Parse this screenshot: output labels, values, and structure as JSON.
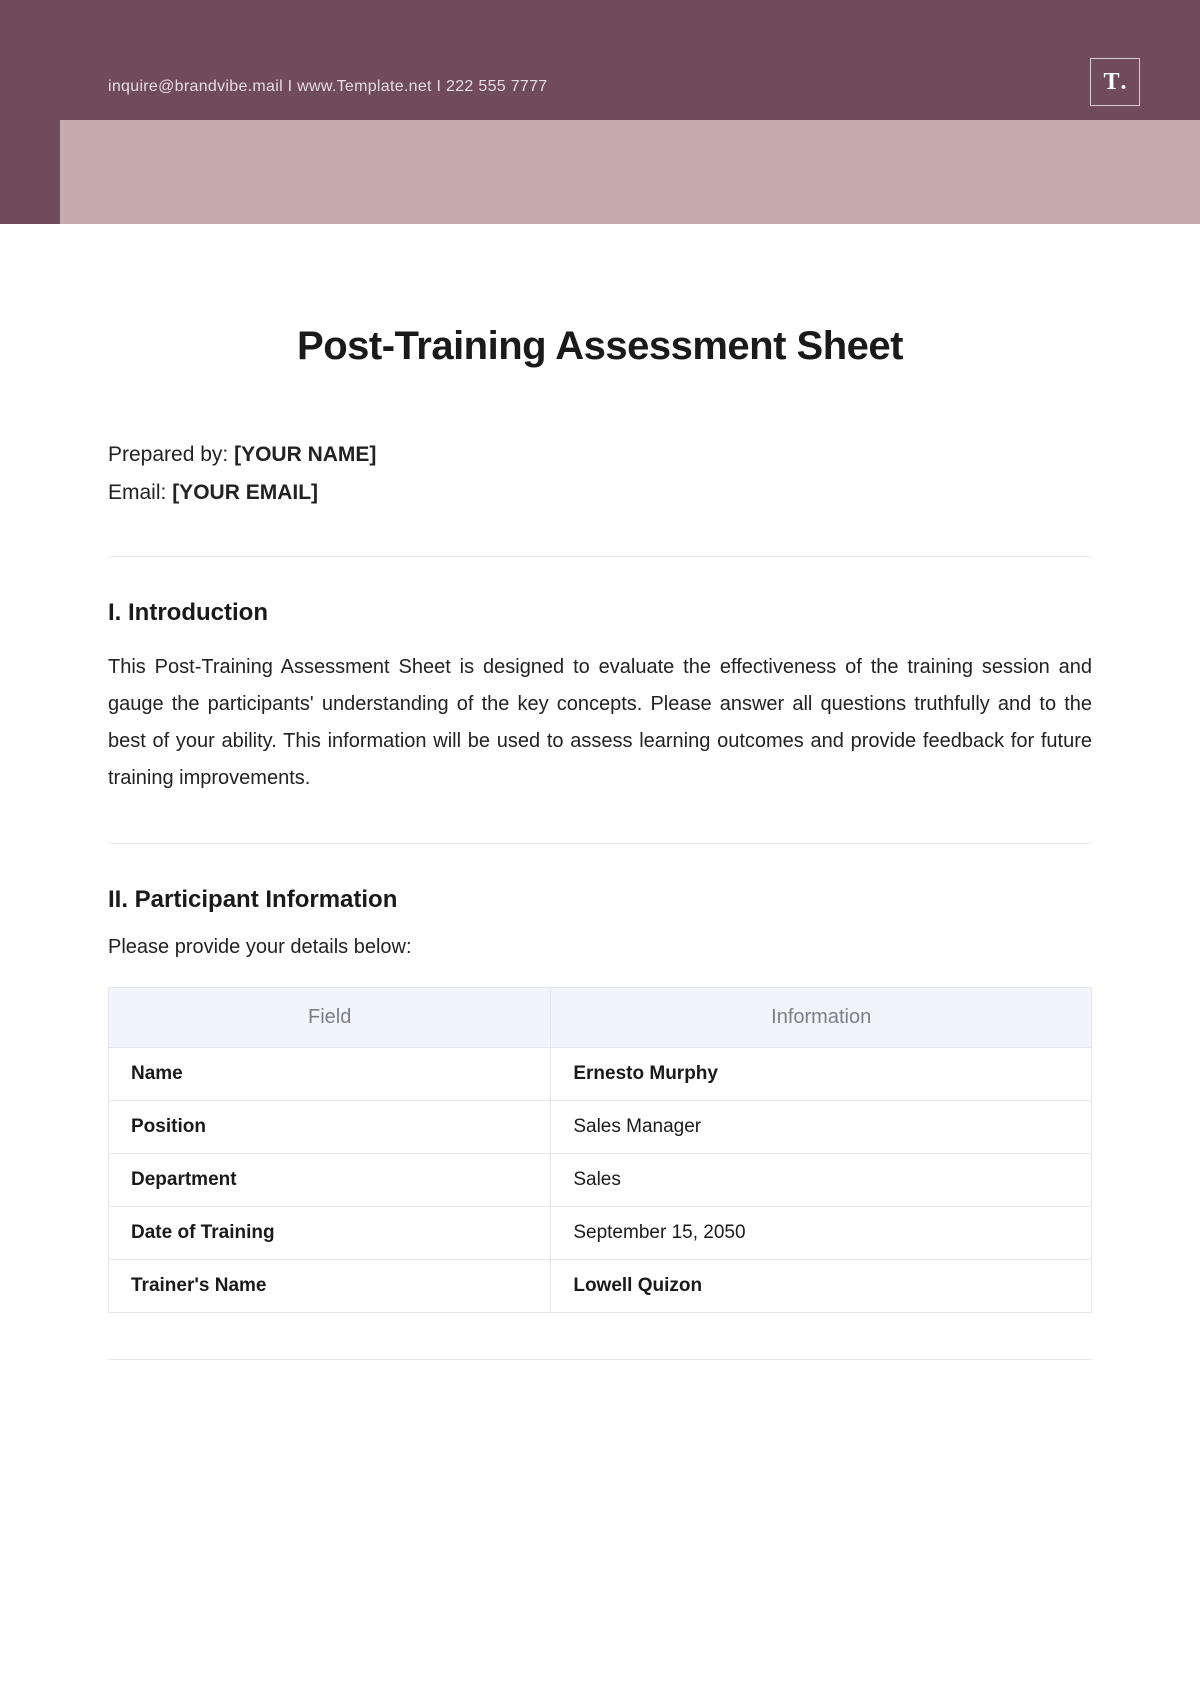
{
  "header": {
    "contact": "inquire@brandvibe.mail  I  www.Template.net  I  222 555 7777",
    "logo_text": "T",
    "logo_dot": "."
  },
  "colors": {
    "header_bg": "#6f4b5c",
    "pink_block": "#c7aaae",
    "header_text": "#e8dbe0",
    "divider": "#e8e8ec",
    "table_header_bg": "#f3f4f9",
    "table_border": "#e6e7ec",
    "table_header_text": "#7a7f8a",
    "body_text": "#1a1a1a"
  },
  "title": "Post-Training Assessment Sheet",
  "prepared": {
    "by_label": "Prepared by: ",
    "by_value": "[YOUR NAME]",
    "email_label": "Email: ",
    "email_value": "[YOUR EMAIL]"
  },
  "section1": {
    "heading": "I. Introduction",
    "body": "This Post-Training Assessment Sheet is designed to evaluate the effectiveness of the training session and gauge the participants' understanding of the key concepts. Please answer all questions truthfully and to the best of your ability. This information will be used to assess learning outcomes and provide feedback for future training improvements."
  },
  "section2": {
    "heading": "II. Participant Information",
    "subtext": "Please provide your details below:",
    "columns": [
      "Field",
      "Information"
    ],
    "rows": [
      {
        "field": "Name",
        "value": "Ernesto Murphy",
        "bold": true
      },
      {
        "field": "Position",
        "value": "Sales Manager",
        "bold": false
      },
      {
        "field": "Department",
        "value": "Sales",
        "bold": false
      },
      {
        "field": "Date of Training",
        "value": "September 15, 2050",
        "bold": false
      },
      {
        "field": "Trainer's Name",
        "value": "Lowell Quizon",
        "bold": true
      }
    ]
  }
}
